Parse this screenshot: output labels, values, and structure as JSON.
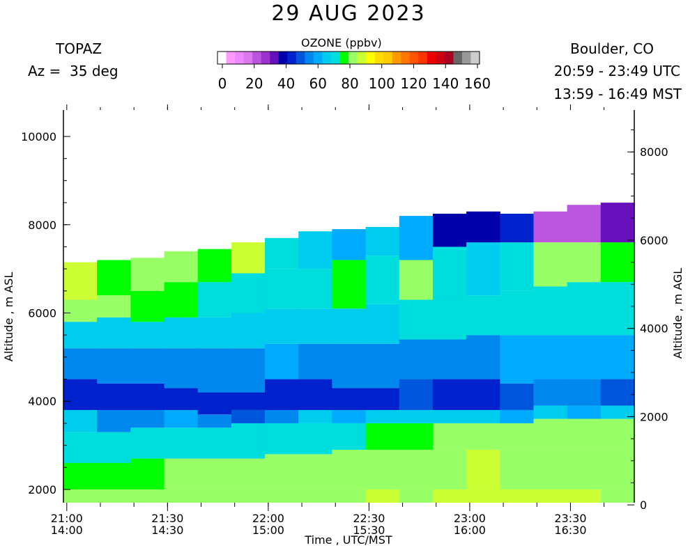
{
  "header": {
    "title": "29 AUG 2023",
    "instrument": "TOPAZ",
    "azimuth": "Az =  35 deg",
    "location": "Boulder, CO",
    "utc_range": "20:59 - 23:49 UTC",
    "mst_range": "13:59 - 16:49 MST"
  },
  "colorbar": {
    "title": "OZONE (ppbv)",
    "ticks": [
      "0",
      "20",
      "40",
      "60",
      "80",
      "100",
      "120",
      "140",
      "160"
    ],
    "colors": [
      "#ffffff",
      "#ff99ff",
      "#ee88ff",
      "#dd77ee",
      "#bb55dd",
      "#9933cc",
      "#6611bb",
      "#0000aa",
      "#0022cc",
      "#0055dd",
      "#0088ee",
      "#00aaff",
      "#00ccee",
      "#00dddd",
      "#00ff00",
      "#99ff66",
      "#ccff33",
      "#ffff00",
      "#ffdd00",
      "#ffcc00",
      "#ff9900",
      "#ff7700",
      "#ff5500",
      "#ff3300",
      "#ee0000",
      "#cc0011",
      "#aa0022",
      "#666666",
      "#999999",
      "#cccccc"
    ]
  },
  "chart_data": {
    "type": "heatmap",
    "title": "29 AUG 2023",
    "xlabel": "Time , UTC/MST",
    "ylabel": "Altitude , m ASL",
    "ylabel_right": "Altitude , m AGL",
    "x_ticks": [
      "21:00",
      "21:30",
      "22:00",
      "22:30",
      "23:00",
      "23:30"
    ],
    "x_ticks_mst": [
      "14:00",
      "14:30",
      "15:00",
      "15:30",
      "16:00",
      "16:30"
    ],
    "y_ticks_left": [
      "2000",
      "4000",
      "6000",
      "8000",
      "10000"
    ],
    "y_ticks_right": [
      "0",
      "2000",
      "4000",
      "6000",
      "8000"
    ],
    "ylim_asl": [
      1700,
      10600
    ],
    "surface_altitude_m": 1650,
    "time_range_utc": [
      "20:59",
      "23:49"
    ],
    "profiles": [
      {
        "time": "21:00",
        "top_m": 7150,
        "layers": [
          [
            1700,
            2000,
            80
          ],
          [
            2000,
            2600,
            78
          ],
          [
            2600,
            3300,
            72
          ],
          [
            3300,
            3800,
            65
          ],
          [
            3800,
            4500,
            45
          ],
          [
            4500,
            5200,
            58
          ],
          [
            5200,
            5800,
            65
          ],
          [
            5800,
            6300,
            80
          ],
          [
            6300,
            7150,
            86
          ]
        ]
      },
      {
        "time": "21:10",
        "top_m": 7200,
        "layers": [
          [
            1700,
            2000,
            82
          ],
          [
            2000,
            2600,
            78
          ],
          [
            2600,
            3300,
            70
          ],
          [
            3300,
            3800,
            55
          ],
          [
            3800,
            4400,
            45
          ],
          [
            4400,
            5200,
            58
          ],
          [
            5200,
            5900,
            65
          ],
          [
            5900,
            6400,
            80
          ],
          [
            6400,
            7200,
            78
          ]
        ]
      },
      {
        "time": "21:20",
        "top_m": 7250,
        "layers": [
          [
            1700,
            2000,
            80
          ],
          [
            2000,
            2700,
            76
          ],
          [
            2700,
            3400,
            70
          ],
          [
            3400,
            3800,
            58
          ],
          [
            3800,
            4400,
            45
          ],
          [
            4400,
            5200,
            56
          ],
          [
            5200,
            5800,
            64
          ],
          [
            5800,
            6500,
            76
          ],
          [
            6500,
            7250,
            82
          ]
        ]
      },
      {
        "time": "21:30",
        "top_m": 7400,
        "layers": [
          [
            1700,
            2000,
            84
          ],
          [
            2000,
            2700,
            80
          ],
          [
            2700,
            3400,
            74
          ],
          [
            3400,
            3800,
            60
          ],
          [
            3800,
            4300,
            44
          ],
          [
            4300,
            5200,
            55
          ],
          [
            5200,
            5900,
            66
          ],
          [
            5900,
            6700,
            76
          ],
          [
            6700,
            7400,
            84
          ]
        ]
      },
      {
        "time": "21:40",
        "top_m": 7450,
        "layers": [
          [
            1700,
            2000,
            80
          ],
          [
            2000,
            2700,
            82
          ],
          [
            2700,
            3400,
            74
          ],
          [
            3400,
            3700,
            56
          ],
          [
            3700,
            4200,
            46
          ],
          [
            4200,
            5200,
            54
          ],
          [
            5200,
            5900,
            68
          ],
          [
            5900,
            6700,
            74
          ],
          [
            6700,
            7450,
            78
          ]
        ]
      },
      {
        "time": "21:50",
        "top_m": 7600,
        "layers": [
          [
            1700,
            2000,
            80
          ],
          [
            2000,
            2700,
            80
          ],
          [
            2700,
            3500,
            72
          ],
          [
            3500,
            3800,
            52
          ],
          [
            3800,
            4200,
            44
          ],
          [
            4200,
            5200,
            55
          ],
          [
            5200,
            6000,
            68
          ],
          [
            6000,
            6900,
            74
          ],
          [
            6900,
            7600,
            86
          ]
        ]
      },
      {
        "time": "22:00",
        "top_m": 7700,
        "layers": [
          [
            1700,
            2000,
            82
          ],
          [
            2000,
            2800,
            80
          ],
          [
            2800,
            3500,
            72
          ],
          [
            3500,
            3800,
            58
          ],
          [
            3800,
            4500,
            46
          ],
          [
            4500,
            5300,
            60
          ],
          [
            5300,
            6100,
            64
          ],
          [
            6100,
            7000,
            72
          ],
          [
            7000,
            7700,
            72
          ]
        ]
      },
      {
        "time": "22:10",
        "top_m": 7850,
        "layers": [
          [
            1700,
            2000,
            84
          ],
          [
            2000,
            2800,
            82
          ],
          [
            2800,
            3500,
            74
          ],
          [
            3500,
            3800,
            64
          ],
          [
            3800,
            4500,
            44
          ],
          [
            4500,
            5300,
            57
          ],
          [
            5300,
            6100,
            66
          ],
          [
            6100,
            7000,
            74
          ],
          [
            7000,
            7850,
            66
          ]
        ]
      },
      {
        "time": "22:20",
        "top_m": 7900,
        "layers": [
          [
            1700,
            2000,
            84
          ],
          [
            2000,
            2900,
            84
          ],
          [
            2900,
            3500,
            74
          ],
          [
            3500,
            3800,
            62
          ],
          [
            3800,
            4300,
            44
          ],
          [
            4300,
            5300,
            56
          ],
          [
            5300,
            6100,
            66
          ],
          [
            6100,
            7200,
            76
          ],
          [
            7200,
            7900,
            62
          ]
        ]
      },
      {
        "time": "22:30",
        "top_m": 7950,
        "layers": [
          [
            1700,
            2000,
            86
          ],
          [
            2000,
            2900,
            82
          ],
          [
            2900,
            3500,
            78
          ],
          [
            3500,
            3800,
            64
          ],
          [
            3800,
            4300,
            44
          ],
          [
            4300,
            5300,
            56
          ],
          [
            5300,
            6200,
            64
          ],
          [
            6200,
            7300,
            70
          ],
          [
            7300,
            7950,
            68
          ]
        ]
      },
      {
        "time": "22:40",
        "top_m": 8200,
        "layers": [
          [
            1700,
            2000,
            84
          ],
          [
            2000,
            2900,
            82
          ],
          [
            2900,
            3500,
            78
          ],
          [
            3500,
            3800,
            64
          ],
          [
            3800,
            4500,
            50
          ],
          [
            4500,
            5400,
            58
          ],
          [
            5400,
            6300,
            70
          ],
          [
            6300,
            7200,
            82
          ],
          [
            7200,
            8200,
            62
          ]
        ]
      },
      {
        "time": "22:50",
        "top_m": 8250,
        "layers": [
          [
            1700,
            2000,
            86
          ],
          [
            2000,
            2900,
            84
          ],
          [
            2900,
            3500,
            80
          ],
          [
            3500,
            3800,
            64
          ],
          [
            3800,
            4500,
            46
          ],
          [
            4500,
            5400,
            58
          ],
          [
            5400,
            6300,
            72
          ],
          [
            6300,
            7500,
            70
          ],
          [
            7500,
            8250,
            38
          ]
        ]
      },
      {
        "time": "23:00",
        "top_m": 8300,
        "layers": [
          [
            1700,
            2000,
            86
          ],
          [
            2000,
            2900,
            86
          ],
          [
            2900,
            3500,
            80
          ],
          [
            3500,
            3800,
            66
          ],
          [
            3800,
            4500,
            46
          ],
          [
            4500,
            5500,
            58
          ],
          [
            5500,
            6400,
            72
          ],
          [
            6400,
            7600,
            64
          ],
          [
            7600,
            8300,
            40
          ]
        ]
      },
      {
        "time": "23:10",
        "top_m": 8250,
        "layers": [
          [
            1700,
            2000,
            86
          ],
          [
            2000,
            2900,
            84
          ],
          [
            2900,
            3500,
            80
          ],
          [
            3500,
            3800,
            62
          ],
          [
            3800,
            4400,
            48
          ],
          [
            4400,
            5500,
            60
          ],
          [
            5500,
            6500,
            74
          ],
          [
            6500,
            7600,
            72
          ],
          [
            7600,
            8250,
            46
          ]
        ]
      },
      {
        "time": "23:20",
        "top_m": 8300,
        "layers": [
          [
            1700,
            2000,
            86
          ],
          [
            2000,
            2900,
            84
          ],
          [
            2900,
            3600,
            82
          ],
          [
            3600,
            3900,
            64
          ],
          [
            3900,
            4500,
            54
          ],
          [
            4500,
            5500,
            60
          ],
          [
            5500,
            6600,
            74
          ],
          [
            6600,
            7600,
            80
          ],
          [
            7600,
            8300,
            22
          ]
        ]
      },
      {
        "time": "23:30",
        "top_m": 8450,
        "layers": [
          [
            1700,
            2000,
            86
          ],
          [
            2000,
            2900,
            84
          ],
          [
            2900,
            3600,
            80
          ],
          [
            3600,
            3900,
            62
          ],
          [
            3900,
            4500,
            54
          ],
          [
            4500,
            5500,
            60
          ],
          [
            5500,
            6700,
            74
          ],
          [
            6700,
            7600,
            84
          ],
          [
            7600,
            8450,
            26
          ]
        ]
      },
      {
        "time": "23:40",
        "top_m": 8500,
        "layers": [
          [
            1700,
            2000,
            84
          ],
          [
            2000,
            2900,
            82
          ],
          [
            2900,
            3600,
            80
          ],
          [
            3600,
            3900,
            64
          ],
          [
            3900,
            4500,
            50
          ],
          [
            4500,
            5500,
            60
          ],
          [
            5500,
            6700,
            72
          ],
          [
            6700,
            7600,
            78
          ],
          [
            7600,
            8500,
            36
          ]
        ]
      }
    ]
  }
}
